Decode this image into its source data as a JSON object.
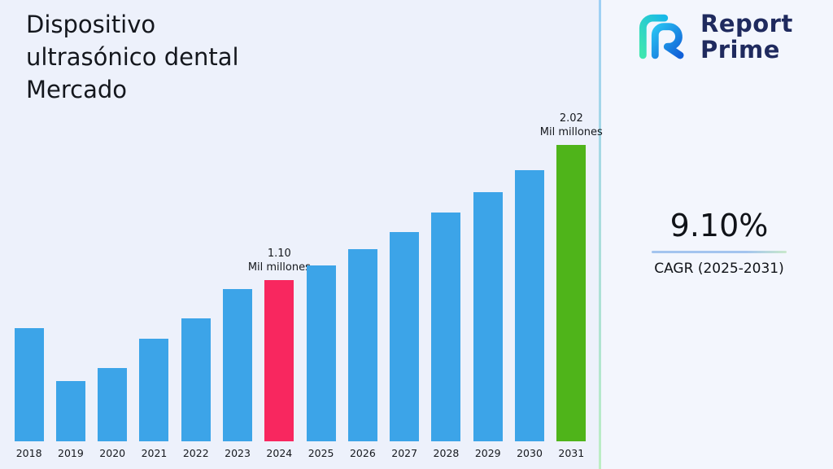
{
  "title": {
    "lines": [
      "Dispositivo",
      "ultrasónico dental",
      "Mercado"
    ]
  },
  "logo": {
    "line1": "Report",
    "line2": "Prime"
  },
  "stats": {
    "cagr_value": "9.10%",
    "cagr_label": "CAGR (2025-2031)"
  },
  "colors": {
    "background": "#EDF1FB",
    "bar_default": "#3CA4E8",
    "bar_highlight_2024": "#F8275F",
    "bar_highlight_2031": "#4FB41A",
    "logo_navy": "#1F2A5E",
    "underline_blue": "#A3C4EF"
  },
  "chart_data": {
    "type": "bar",
    "title": "Dispositivo ultrasónico dental Mercado",
    "unit": "Mil millones",
    "categories": [
      "2018",
      "2019",
      "2020",
      "2021",
      "2022",
      "2023",
      "2024",
      "2025",
      "2026",
      "2027",
      "2028",
      "2029",
      "2030",
      "2031"
    ],
    "values": [
      0.77,
      0.41,
      0.5,
      0.7,
      0.84,
      1.04,
      1.1,
      1.2,
      1.31,
      1.43,
      1.56,
      1.7,
      1.85,
      2.02
    ],
    "default_color": "#3CA4E8",
    "highlight_colors": {
      "2024": "#F8275F",
      "2031": "#4FB41A"
    },
    "annotations": [
      {
        "category": "2024",
        "lines": [
          "1.10",
          "Mil millones"
        ]
      },
      {
        "category": "2031",
        "lines": [
          "2.02",
          "Mil millones"
        ]
      }
    ],
    "xlabel": "",
    "ylabel": "",
    "ylim": [
      0,
      2.2
    ],
    "grid": false,
    "legend": false
  }
}
